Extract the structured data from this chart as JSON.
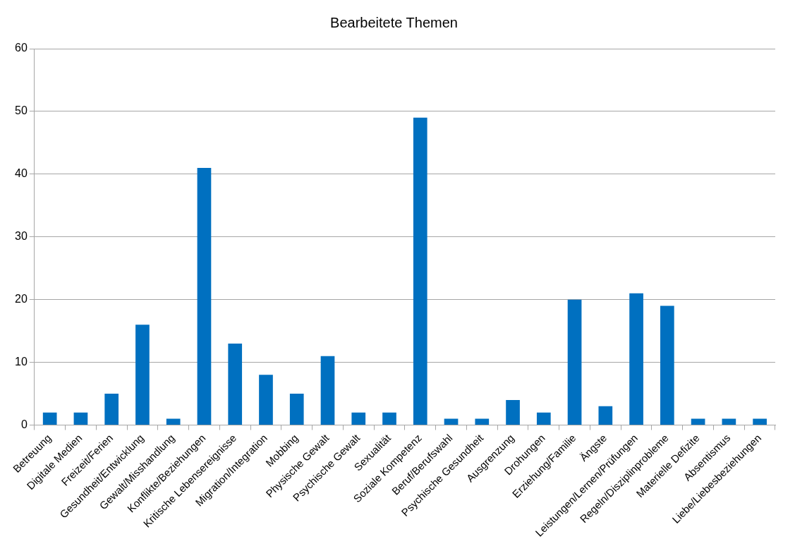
{
  "chart_data": {
    "type": "bar",
    "title": "Bearbeitete Themen",
    "categories": [
      "Betreuung",
      "Digitale Medien",
      "Freizeit/Ferien",
      "Gesundheit/Entwicklung",
      "Gewalt/Misshandlung",
      "Konflikte/Beziehungen",
      "Kritische Lebensereignisse",
      "Migration/Integration",
      "Mobbing",
      "Physische Gewalt",
      "Psychische Gewalt",
      "Sexualität",
      "Soziale Kompetenz",
      "Beruf/Berufswahl",
      "Psychische Gesundheit",
      "Ausgrenzung",
      "Drohungen",
      "Erziehung/Familie",
      "Ängste",
      "Leistungen/Lernen/Prüfungen",
      "Regeln/Disziplinprobleme",
      "Materielle Defizite",
      "Absentismus",
      "Liebe/Liebesbeziehungen"
    ],
    "values": [
      2,
      2,
      5,
      16,
      1,
      41,
      13,
      8,
      5,
      11,
      2,
      2,
      49,
      1,
      1,
      4,
      2,
      20,
      3,
      21,
      19,
      1,
      1,
      1
    ],
    "color": "#0070c0",
    "ylim": [
      0,
      60
    ],
    "yticks": [
      0,
      10,
      20,
      30,
      40,
      50,
      60
    ],
    "grid": "y",
    "legend": false
  }
}
